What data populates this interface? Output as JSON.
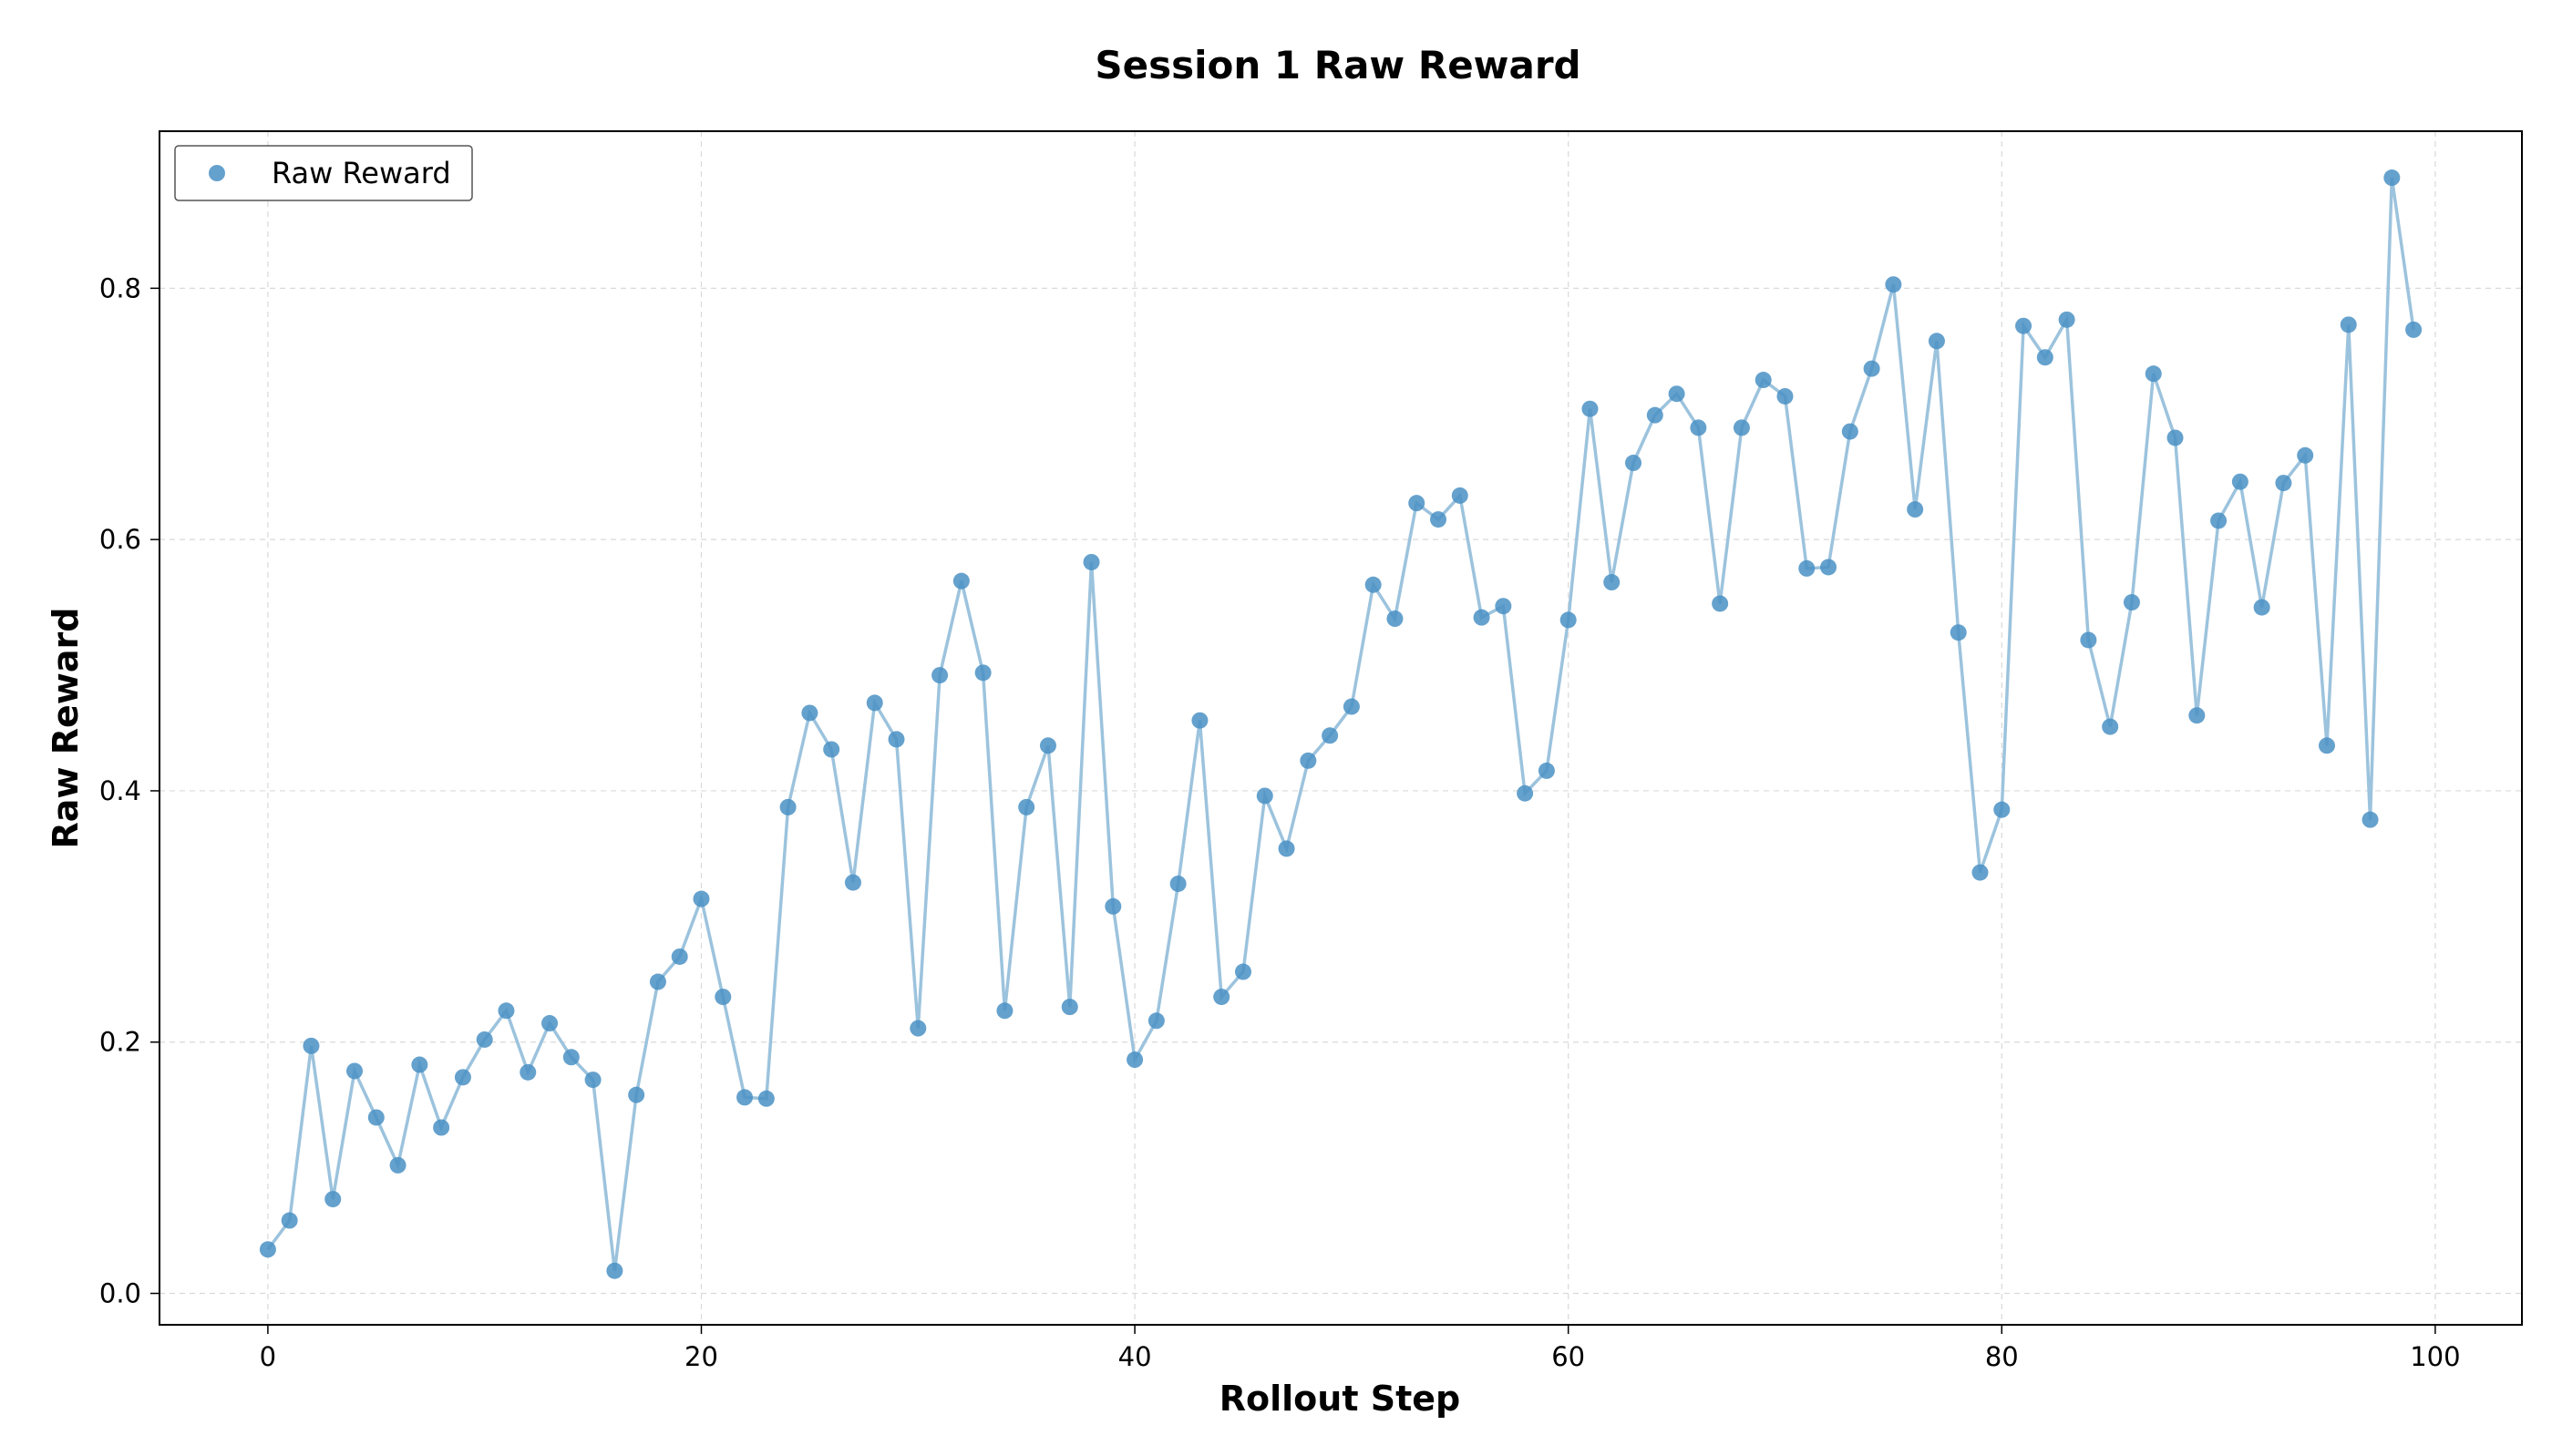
{
  "chart_data": {
    "type": "scatter",
    "title": "Session 1 Raw Reward",
    "xlabel": "Rollout Step",
    "ylabel": "Raw Reward",
    "xlim": [
      -5,
      104
    ],
    "ylim": [
      -0.025,
      0.925
    ],
    "xticks": [
      0,
      20,
      40,
      60,
      80,
      100
    ],
    "xtick_labels": [
      "0",
      "20",
      "40",
      "60",
      "80",
      "100"
    ],
    "yticks": [
      0.0,
      0.2,
      0.4,
      0.6,
      0.8
    ],
    "ytick_labels": [
      "0.0",
      "0.2",
      "0.4",
      "0.6",
      "0.8"
    ],
    "grid": true,
    "legend_position": "top-left",
    "colors": {
      "marker": "#4a90c4",
      "line": "#9cc3dd"
    },
    "series": [
      {
        "name": "Raw Reward",
        "x": [
          0,
          1,
          2,
          3,
          4,
          5,
          6,
          7,
          8,
          9,
          10,
          11,
          12,
          13,
          14,
          15,
          16,
          17,
          18,
          19,
          20,
          21,
          22,
          23,
          24,
          25,
          26,
          27,
          28,
          29,
          30,
          31,
          32,
          33,
          34,
          35,
          36,
          37,
          38,
          39,
          40,
          41,
          42,
          43,
          44,
          45,
          46,
          47,
          48,
          49,
          50,
          51,
          52,
          53,
          54,
          55,
          56,
          57,
          58,
          59,
          60,
          61,
          62,
          63,
          64,
          65,
          66,
          67,
          68,
          69,
          70,
          71,
          72,
          73,
          74,
          75,
          76,
          77,
          78,
          79,
          80,
          81,
          82,
          83,
          84,
          85,
          86,
          87,
          88,
          89,
          90,
          91,
          92,
          93,
          94,
          95,
          96,
          97,
          98,
          99
        ],
        "y": [
          0.035,
          0.058,
          0.197,
          0.075,
          0.177,
          0.14,
          0.102,
          0.182,
          0.132,
          0.172,
          0.202,
          0.225,
          0.176,
          0.215,
          0.188,
          0.17,
          0.018,
          0.158,
          0.248,
          0.268,
          0.314,
          0.236,
          0.156,
          0.155,
          0.387,
          0.462,
          0.433,
          0.327,
          0.47,
          0.441,
          0.211,
          0.492,
          0.567,
          0.494,
          0.225,
          0.387,
          0.436,
          0.228,
          0.582,
          0.308,
          0.186,
          0.217,
          0.326,
          0.456,
          0.236,
          0.256,
          0.396,
          0.354,
          0.424,
          0.444,
          0.467,
          0.564,
          0.537,
          0.629,
          0.616,
          0.635,
          0.538,
          0.547,
          0.398,
          0.416,
          0.536,
          0.704,
          0.566,
          0.661,
          0.699,
          0.716,
          0.689,
          0.549,
          0.689,
          0.727,
          0.714,
          0.577,
          0.578,
          0.686,
          0.736,
          0.803,
          0.624,
          0.758,
          0.526,
          0.335,
          0.385,
          0.77,
          0.745,
          0.775,
          0.52,
          0.451,
          0.55,
          0.732,
          0.681,
          0.46,
          0.615,
          0.646,
          0.546,
          0.645,
          0.667,
          0.436,
          0.771,
          0.377,
          0.888,
          0.767
        ]
      }
    ]
  }
}
